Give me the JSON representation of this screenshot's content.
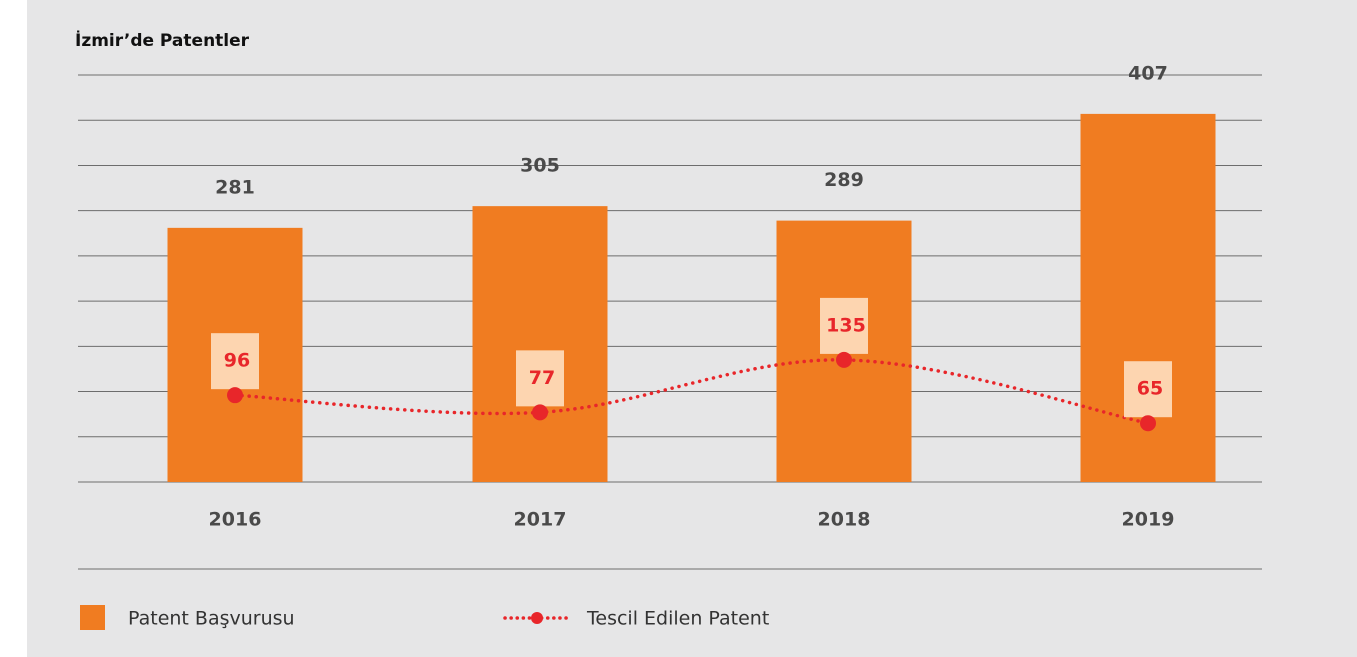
{
  "chart_data": {
    "type": "bar",
    "title": "İzmir’de Patentler",
    "categories": [
      "2016",
      "2017",
      "2018",
      "2019"
    ],
    "series": [
      {
        "name": "Patent Başvurusu",
        "type": "bar",
        "color": "#f07c21",
        "values": [
          281,
          305,
          289,
          407
        ]
      },
      {
        "name": "Tescil Edilen Patent",
        "type": "line",
        "color": "#e8262a",
        "values": [
          96,
          77,
          135,
          65
        ]
      }
    ],
    "ylim": [
      0,
      450
    ],
    "yticks": [
      0,
      50,
      100,
      150,
      200,
      250,
      300,
      350,
      400,
      450
    ],
    "grid": true
  }
}
